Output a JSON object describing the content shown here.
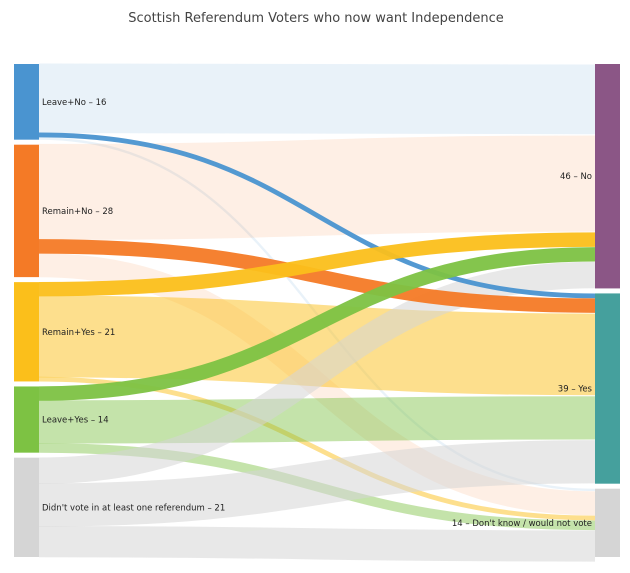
{
  "chart_data": {
    "type": "sankey",
    "title": "Scottish Referendum Voters who now want Independence",
    "nodes": [
      {
        "id": "leave_no",
        "label": "Leave+No – 16",
        "value": 16,
        "color": "#4a94d0",
        "side": "source"
      },
      {
        "id": "remain_no",
        "label": "Remain+No – 28",
        "value": 28,
        "color": "#f47a26",
        "side": "source"
      },
      {
        "id": "remain_yes",
        "label": "Remain+Yes – 21",
        "value": 21,
        "color": "#fbbf1b",
        "side": "source"
      },
      {
        "id": "leave_yes",
        "label": "Leave+Yes – 14",
        "value": 14,
        "color": "#7dc243",
        "side": "source"
      },
      {
        "id": "didnt_vote",
        "label": "Didn't vote in at least one referendum – 21",
        "value": 21,
        "color": "#d5d5d5",
        "side": "source"
      },
      {
        "id": "no",
        "label": "46 – No",
        "value": 46,
        "color": "#8b5686",
        "side": "target"
      },
      {
        "id": "yes",
        "label": "39 – Yes",
        "value": 39,
        "color": "#45a09d",
        "side": "target"
      },
      {
        "id": "dk",
        "label": "14 – Don't know / would not vote",
        "value": 14,
        "color": "#d5d5d5",
        "side": "target"
      }
    ],
    "links": [
      {
        "source": "leave_no",
        "target": "no",
        "value": 14.5,
        "style": "faint"
      },
      {
        "source": "leave_no",
        "target": "yes",
        "value": 1,
        "style": "solid"
      },
      {
        "source": "leave_no",
        "target": "dk",
        "value": 0.5,
        "style": "faint"
      },
      {
        "source": "remain_no",
        "target": "no",
        "value": 20,
        "style": "faint"
      },
      {
        "source": "remain_no",
        "target": "yes",
        "value": 3,
        "style": "solid"
      },
      {
        "source": "remain_no",
        "target": "dk",
        "value": 5,
        "style": "faint"
      },
      {
        "source": "remain_yes",
        "target": "no",
        "value": 3,
        "style": "solid"
      },
      {
        "source": "remain_yes",
        "target": "yes",
        "value": 17,
        "style": "faint"
      },
      {
        "source": "remain_yes",
        "target": "dk",
        "value": 1,
        "style": "faint"
      },
      {
        "source": "leave_yes",
        "target": "no",
        "value": 3,
        "style": "solid"
      },
      {
        "source": "leave_yes",
        "target": "yes",
        "value": 9,
        "style": "faint"
      },
      {
        "source": "leave_yes",
        "target": "dk",
        "value": 2,
        "style": "faint"
      },
      {
        "source": "didnt_vote",
        "target": "no",
        "value": 5.5,
        "style": "faint"
      },
      {
        "source": "didnt_vote",
        "target": "yes",
        "value": 9,
        "style": "faint"
      },
      {
        "source": "didnt_vote",
        "target": "dk",
        "value": 6.5,
        "style": "faint"
      }
    ]
  }
}
